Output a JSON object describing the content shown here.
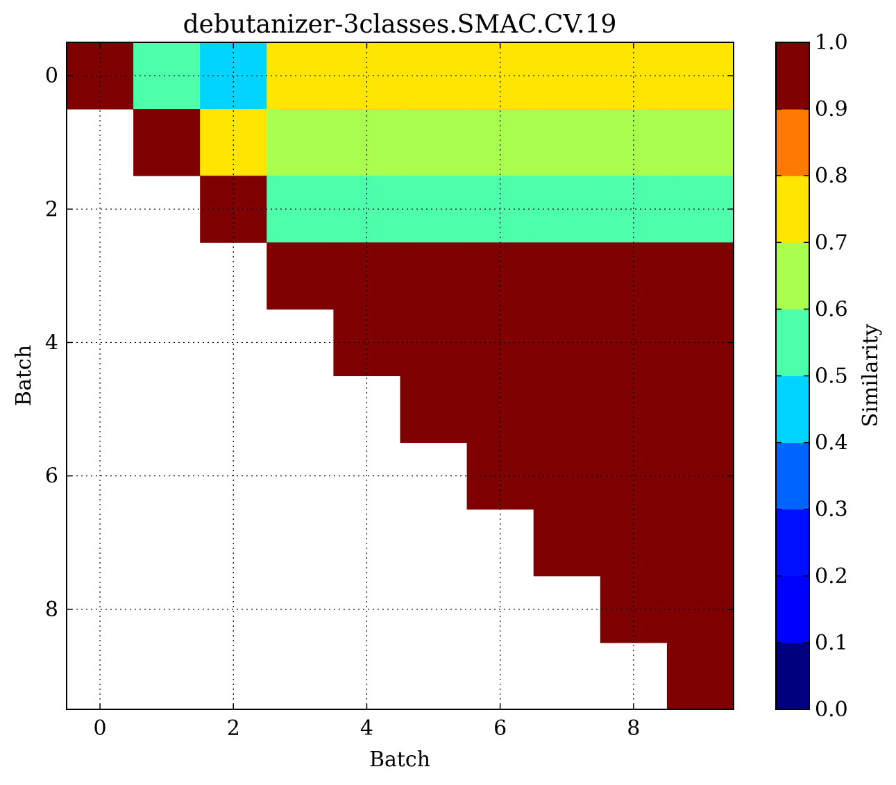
{
  "chart_data": {
    "type": "heatmap",
    "title": "debutanizer-3classes.SMAC.CV.19",
    "xlabel": "Batch",
    "ylabel": "Batch",
    "x_ticks": [
      "0",
      "2",
      "4",
      "6",
      "8"
    ],
    "y_ticks": [
      "0",
      "2",
      "4",
      "6",
      "8"
    ],
    "xlim": [
      -0.5,
      9.5
    ],
    "ylim": [
      9.5,
      -0.5
    ],
    "grid": true,
    "colorbar": {
      "label": "Similarity",
      "range": [
        0.0,
        1.0
      ],
      "ticks": [
        "0.0",
        "0.1",
        "0.2",
        "0.3",
        "0.4",
        "0.5",
        "0.6",
        "0.7",
        "0.8",
        "0.9",
        "1.0"
      ],
      "colors": [
        "#00007f",
        "#0000ff",
        "#0010ff",
        "#0064ff",
        "#00d4ff",
        "#4dffaa",
        "#a8ff4d",
        "#ffe500",
        "#ff7a00",
        "#ff1800",
        "#7f0000"
      ]
    },
    "matrix": [
      [
        1.0,
        0.55,
        0.45,
        0.75,
        0.75,
        0.75,
        0.75,
        0.75,
        0.75,
        0.75
      ],
      [
        null,
        1.0,
        0.75,
        0.65,
        0.65,
        0.65,
        0.65,
        0.65,
        0.65,
        0.65
      ],
      [
        null,
        null,
        1.0,
        0.55,
        0.55,
        0.55,
        0.55,
        0.55,
        0.55,
        0.55
      ],
      [
        null,
        null,
        null,
        1.0,
        1.0,
        1.0,
        1.0,
        1.0,
        1.0,
        1.0
      ],
      [
        null,
        null,
        null,
        null,
        1.0,
        1.0,
        1.0,
        1.0,
        1.0,
        1.0
      ],
      [
        null,
        null,
        null,
        null,
        null,
        1.0,
        1.0,
        1.0,
        1.0,
        1.0
      ],
      [
        null,
        null,
        null,
        null,
        null,
        null,
        1.0,
        1.0,
        1.0,
        1.0
      ],
      [
        null,
        null,
        null,
        null,
        null,
        null,
        null,
        1.0,
        1.0,
        1.0
      ],
      [
        null,
        null,
        null,
        null,
        null,
        null,
        null,
        null,
        1.0,
        1.0
      ],
      [
        null,
        null,
        null,
        null,
        null,
        null,
        null,
        null,
        null,
        1.0
      ]
    ]
  }
}
